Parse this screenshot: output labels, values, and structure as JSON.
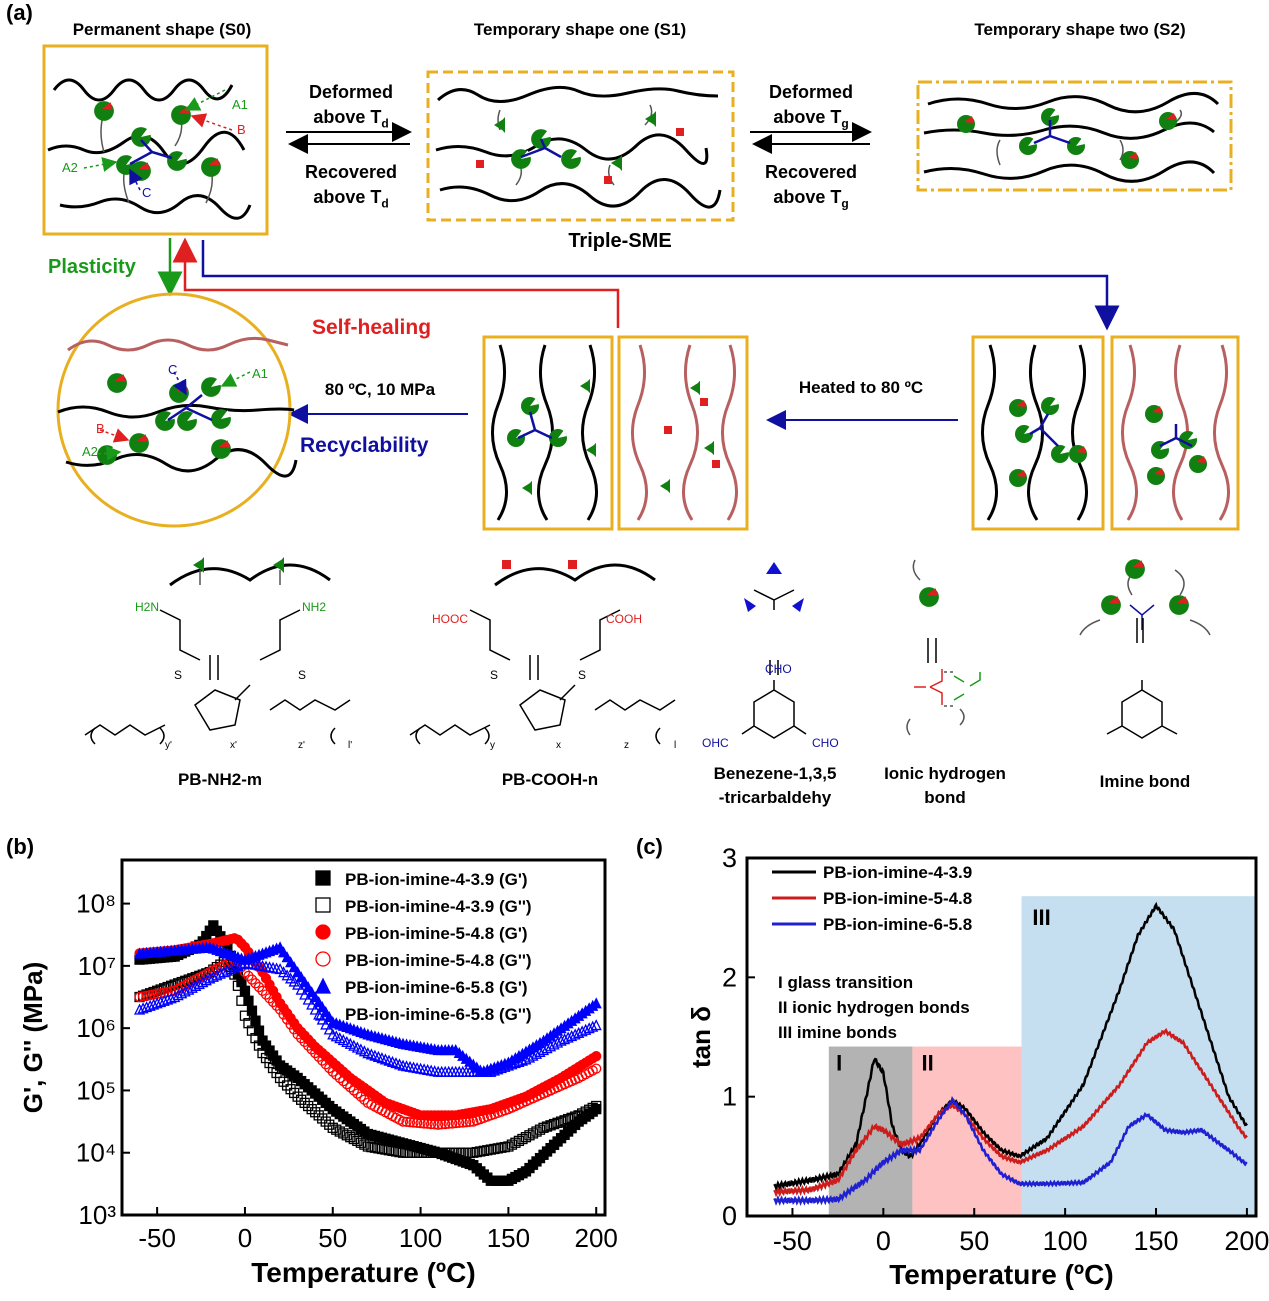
{
  "panel_a": {
    "label": "(a)",
    "s0_title": "Permanent shape (S0)",
    "s1_title": "Temporary shape one (S1)",
    "s2_title": "Temporary shape two (S2)",
    "deformed_td": "Deformed",
    "above_td": "above T",
    "td_sub": "d",
    "recovered_td": "Recovered",
    "deformed_tg": "Deformed",
    "above_tg": "above T",
    "tg_sub": "g",
    "recovered_tg": "Recovered",
    "triple_sme": "Triple-SME",
    "plasticity": "Plasticity",
    "self_healing": "Self-healing",
    "recyclability": "Recyclability",
    "condition_80c": "80 ºC, 10 MPa",
    "heated": "Heated to 80 ºC",
    "marker_a1": "A1",
    "marker_a2": "A2",
    "marker_b": "B",
    "marker_c": "C",
    "chem": {
      "pb_nh2": "PB-NH2-m",
      "pb_cooh": "PB-COOH-n",
      "benzene_1": "Benezene-1,3,5",
      "benzene_2": "-tricarbaldehy",
      "ionic_1": "Ionic hydrogen",
      "ionic_2": "bond",
      "imine": "Imine bond",
      "h2n": "H2N",
      "nh2": "NH2",
      "hooc": "HOOC",
      "cooh": "COOH",
      "cho_top": "CHO",
      "ohc": "OHC",
      "cho_right": "CHO",
      "s": "S",
      "sub_y1": "y'",
      "sub_x1": "x'",
      "sub_z1": "z'",
      "sub_l1": "l'",
      "sub_y": "y",
      "sub_x": "x",
      "sub_z": "z",
      "sub_l": "l"
    }
  },
  "panel_b": {
    "label": "(b)",
    "chart_data": {
      "type": "scatter",
      "xlabel": "Temperature (ºC)",
      "ylabel": "G', G'' (MPa)",
      "xlim": [
        -70,
        205
      ],
      "ylim_log10": [
        3,
        8.7
      ],
      "xticks": [
        "-50",
        "0",
        "50",
        "100",
        "150",
        "200"
      ],
      "yticks": [
        "10³",
        "10⁴",
        "10⁵",
        "10⁶",
        "10⁷",
        "10⁸"
      ],
      "legend": "top-right",
      "series": [
        {
          "name": "PB-ion-imine-4-3.9 (G')",
          "color": "#000000",
          "marker": "filled-square",
          "x": [
            -60,
            -40,
            -25,
            -18,
            -10,
            0,
            10,
            20,
            30,
            50,
            70,
            90,
            110,
            130,
            140,
            150,
            160,
            175,
            190,
            200
          ],
          "logy": [
            7.1,
            7.15,
            7.35,
            7.65,
            7.3,
            6.6,
            5.8,
            5.4,
            5.2,
            4.7,
            4.3,
            4.15,
            4.0,
            3.8,
            3.55,
            3.55,
            3.7,
            4.1,
            4.5,
            4.7
          ]
        },
        {
          "name": "PB-ion-imine-4-3.9 (G'')",
          "color": "#000000",
          "marker": "open-square",
          "x": [
            -60,
            -40,
            -20,
            -10,
            -5,
            0,
            10,
            20,
            30,
            50,
            70,
            90,
            110,
            130,
            150,
            170,
            190,
            200
          ],
          "logy": [
            6.5,
            6.7,
            6.9,
            7.1,
            6.8,
            6.2,
            5.6,
            5.2,
            4.9,
            4.4,
            4.1,
            4.0,
            4.0,
            4.0,
            4.1,
            4.4,
            4.6,
            4.75
          ]
        },
        {
          "name": "PB-ion-imine-5-4.8 (G')",
          "color": "#ff0000",
          "marker": "filled-circle",
          "x": [
            -60,
            -40,
            -20,
            -5,
            0,
            10,
            20,
            30,
            40,
            60,
            80,
            100,
            120,
            140,
            160,
            180,
            200
          ],
          "logy": [
            7.2,
            7.25,
            7.35,
            7.45,
            7.3,
            6.9,
            6.4,
            6.0,
            5.7,
            5.2,
            4.8,
            4.6,
            4.6,
            4.7,
            4.9,
            5.2,
            5.55
          ]
        },
        {
          "name": "PB-ion-imine-5-4.8 (G'')",
          "color": "#ff0000",
          "marker": "open-circle",
          "x": [
            -60,
            -40,
            -20,
            -5,
            0,
            10,
            20,
            30,
            50,
            70,
            90,
            110,
            130,
            150,
            170,
            190,
            200
          ],
          "logy": [
            6.5,
            6.6,
            6.9,
            7.1,
            6.9,
            6.6,
            6.3,
            5.9,
            5.3,
            4.8,
            4.5,
            4.45,
            4.5,
            4.7,
            4.95,
            5.2,
            5.35
          ]
        },
        {
          "name": "PB-ion-imine-6-5.8 (G')",
          "color": "#0000ff",
          "marker": "filled-triangle",
          "x": [
            -60,
            -40,
            -20,
            0,
            10,
            20,
            30,
            40,
            50,
            70,
            90,
            110,
            120,
            135,
            150,
            170,
            190,
            200
          ],
          "logy": [
            7.2,
            7.25,
            7.3,
            7.1,
            7.2,
            7.3,
            6.9,
            6.5,
            6.1,
            5.9,
            5.75,
            5.65,
            5.65,
            5.3,
            5.45,
            5.8,
            6.2,
            6.4
          ]
        },
        {
          "name": "PB-ion-imine-6-5.8 (G'')",
          "color": "#0000ff",
          "marker": "open-triangle",
          "x": [
            -60,
            -40,
            -20,
            0,
            10,
            20,
            30,
            40,
            50,
            70,
            90,
            110,
            130,
            140,
            160,
            180,
            200
          ],
          "logy": [
            6.3,
            6.5,
            6.8,
            7.05,
            7.0,
            6.95,
            6.7,
            6.3,
            5.9,
            5.6,
            5.4,
            5.3,
            5.3,
            5.3,
            5.5,
            5.8,
            6.05
          ]
        }
      ]
    }
  },
  "panel_c": {
    "label": "(c)",
    "region_labels": [
      "I",
      "II",
      "III"
    ],
    "annot": [
      "I   glass transition",
      "II  ionic hydrogen bonds",
      "III imine bonds"
    ],
    "chart_data": {
      "type": "line",
      "xlabel": "Temperature (ºC)",
      "ylabel": "tan δ",
      "xlim": [
        -75,
        205
      ],
      "ylim": [
        0,
        3
      ],
      "xticks": [
        "-50",
        "0",
        "50",
        "100",
        "150",
        "200"
      ],
      "yticks": [
        "0",
        "1",
        "2",
        "3"
      ],
      "legend": "top-left",
      "regions": [
        {
          "label": "I",
          "x": [
            -30,
            16
          ],
          "ymax": 1.42,
          "color": "#b3b3b3"
        },
        {
          "label": "II",
          "x": [
            16,
            76
          ],
          "ymax": 1.42,
          "color": "#ffc2c2"
        },
        {
          "label": "III",
          "x": [
            76,
            205
          ],
          "ymax": 2.68,
          "color": "#c5dff0"
        }
      ],
      "series": [
        {
          "name": "PB-ion-imine-4-3.9",
          "color": "#000000",
          "x": [
            -60,
            -40,
            -25,
            -15,
            -8,
            -5,
            0,
            5,
            10,
            15,
            20,
            30,
            38,
            45,
            55,
            65,
            75,
            90,
            110,
            130,
            140,
            150,
            160,
            175,
            190,
            200
          ],
          "y": [
            0.25,
            0.3,
            0.35,
            0.6,
            1.1,
            1.32,
            1.2,
            0.75,
            0.55,
            0.5,
            0.6,
            0.85,
            0.97,
            0.9,
            0.7,
            0.55,
            0.5,
            0.65,
            1.1,
            1.9,
            2.35,
            2.6,
            2.4,
            1.7,
            1.0,
            0.75
          ]
        },
        {
          "name": "PB-ion-imine-5-4.8",
          "color": "#cc1c1c",
          "x": [
            -60,
            -40,
            -25,
            -15,
            -5,
            0,
            10,
            20,
            30,
            38,
            45,
            55,
            65,
            75,
            90,
            110,
            130,
            145,
            155,
            165,
            180,
            195,
            200
          ],
          "y": [
            0.2,
            0.22,
            0.3,
            0.55,
            0.75,
            0.72,
            0.6,
            0.65,
            0.85,
            0.93,
            0.85,
            0.65,
            0.5,
            0.45,
            0.55,
            0.75,
            1.1,
            1.45,
            1.55,
            1.45,
            1.1,
            0.75,
            0.65
          ]
        },
        {
          "name": "PB-ion-imine-6-5.8",
          "color": "#2020d0",
          "x": [
            -60,
            -40,
            -25,
            -10,
            0,
            10,
            20,
            30,
            38,
            45,
            55,
            65,
            75,
            90,
            110,
            125,
            135,
            145,
            155,
            165,
            175,
            190,
            200
          ],
          "y": [
            0.13,
            0.13,
            0.14,
            0.3,
            0.45,
            0.55,
            0.55,
            0.8,
            0.97,
            0.85,
            0.55,
            0.35,
            0.27,
            0.27,
            0.28,
            0.45,
            0.75,
            0.85,
            0.72,
            0.7,
            0.72,
            0.55,
            0.43
          ]
        }
      ]
    }
  }
}
